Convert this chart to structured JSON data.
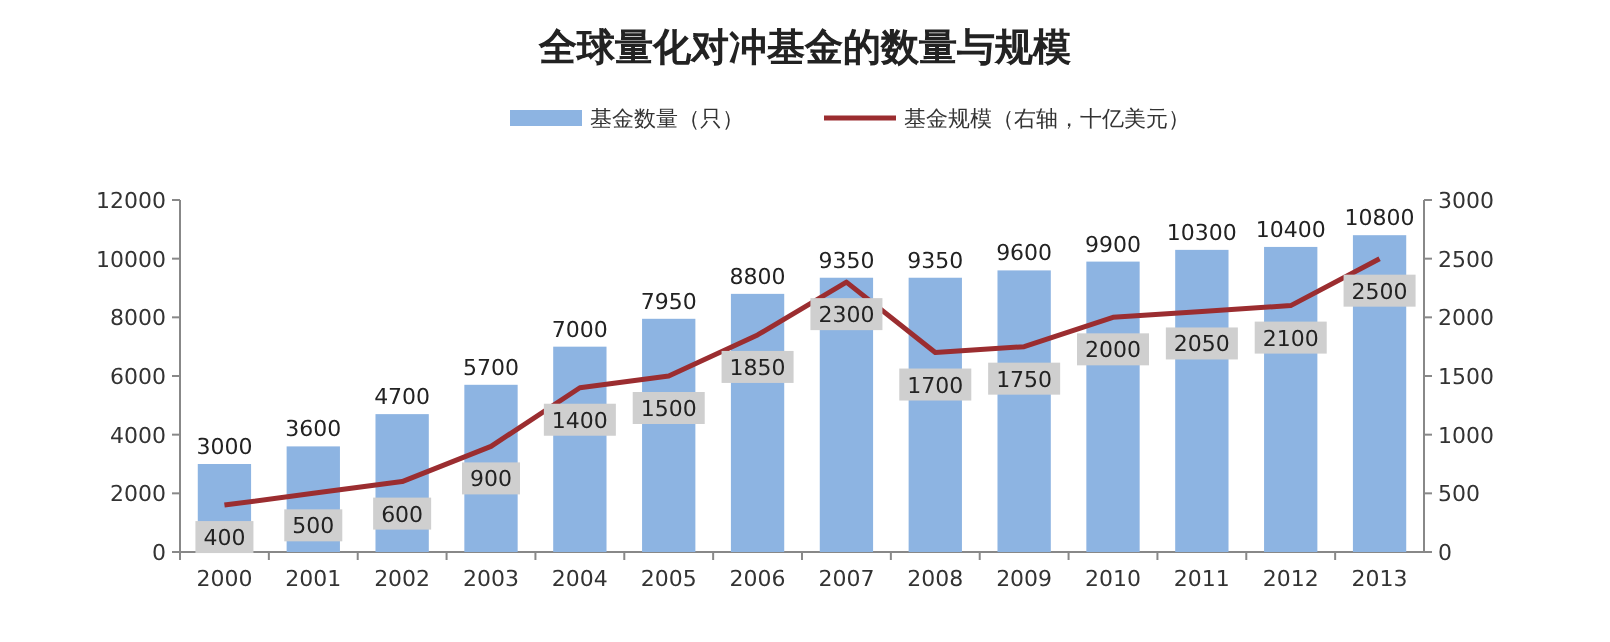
{
  "chart_data": {
    "type": "bar",
    "title": "全球量化对冲基金的数量与规模",
    "categories": [
      "2000",
      "2001",
      "2002",
      "2003",
      "2004",
      "2005",
      "2006",
      "2007",
      "2008",
      "2009",
      "2010",
      "2011",
      "2012",
      "2013"
    ],
    "series": [
      {
        "name": "基金数量（只）",
        "color": "#8db4e2",
        "values": [
          3000,
          3600,
          4700,
          5700,
          7000,
          7950,
          8800,
          9350,
          9350,
          9600,
          9900,
          10300,
          10400,
          10800
        ]
      },
      {
        "name": "基金规模（右轴，十亿美元）",
        "type": "line",
        "axis": "y2",
        "color": "#9b2d30",
        "values": [
          400,
          500,
          600,
          900,
          1400,
          1500,
          1850,
          2300,
          1700,
          1750,
          2000,
          2050,
          2100,
          2500
        ]
      }
    ],
    "ylim": [
      0,
      12000
    ],
    "yticks": [
      0,
      2000,
      4000,
      6000,
      8000,
      10000,
      12000
    ],
    "y2lim": [
      0,
      3000
    ],
    "y2ticks": [
      0,
      500,
      1000,
      1500,
      2000,
      2500,
      3000
    ],
    "data_labels": true,
    "legend": "top",
    "grid": false,
    "marker": "none",
    "line_style": "solid"
  }
}
